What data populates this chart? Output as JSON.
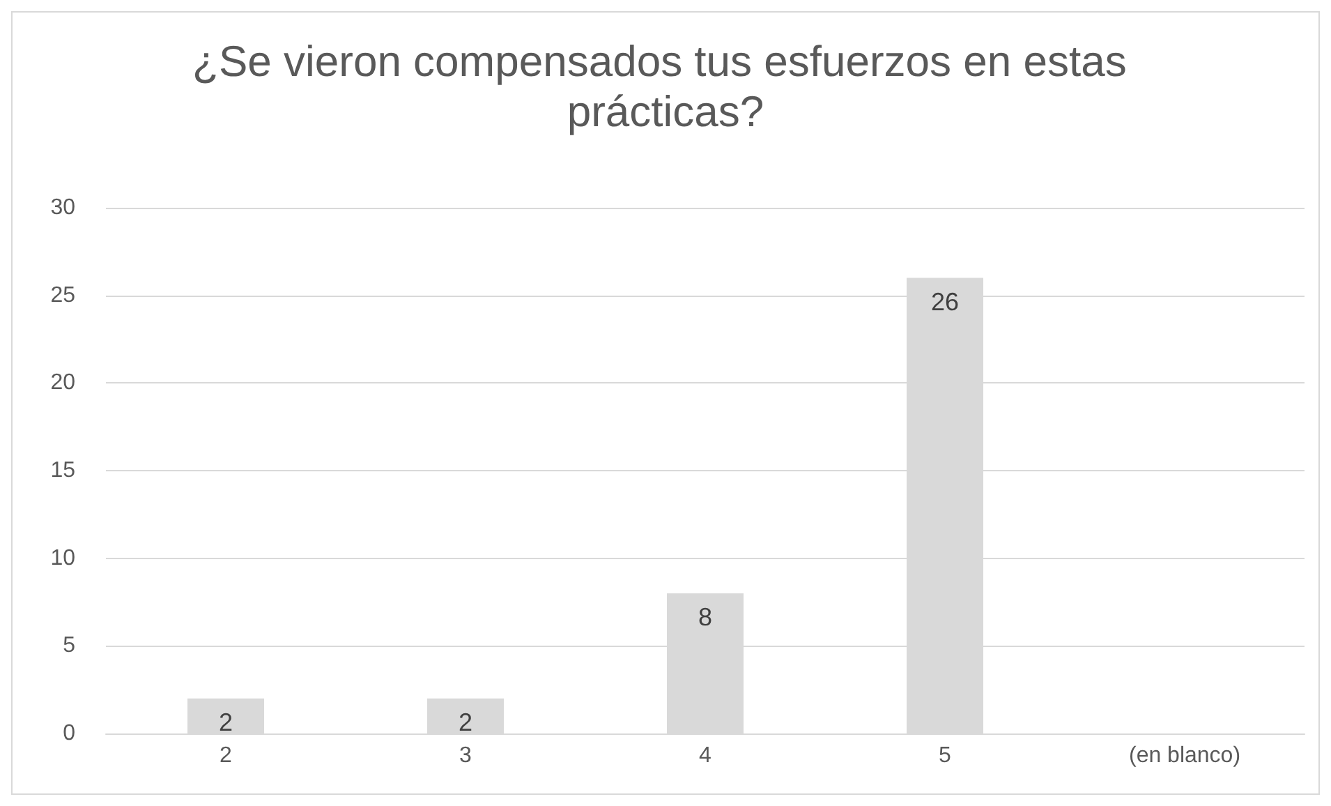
{
  "chart_data": {
    "type": "bar",
    "title": "¿Se vieron compensados tus esfuerzos en estas prácticas?",
    "categories": [
      "2",
      "3",
      "4",
      "5",
      "(en blanco)"
    ],
    "values": [
      2,
      2,
      8,
      26,
      null
    ],
    "color": "#d9d9d9",
    "ylim": [
      0,
      30
    ],
    "yticks": [
      0,
      5,
      10,
      15,
      20,
      25,
      30
    ],
    "grid": "y",
    "data_labels": true
  }
}
